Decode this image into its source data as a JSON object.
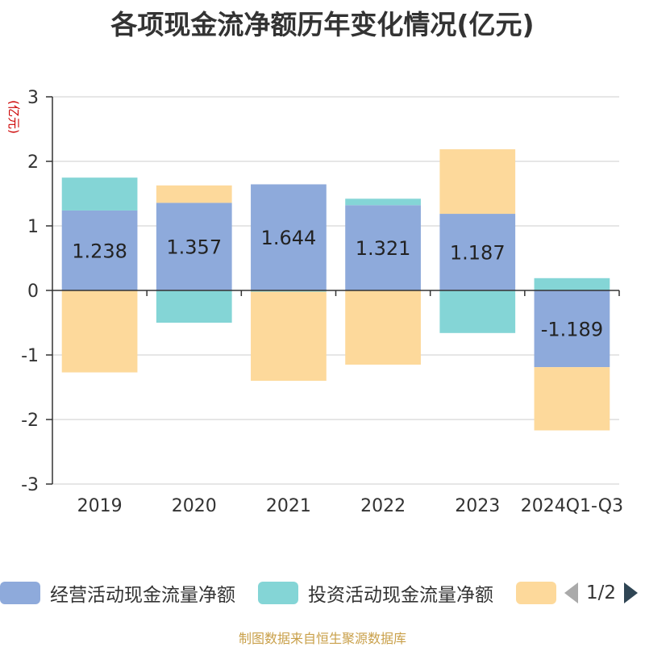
{
  "chart_data": {
    "type": "bar",
    "stacked": true,
    "title": "各项现金流净额历年变化情况(亿元)",
    "ylabel": "(亿元)",
    "categories": [
      "2019",
      "2020",
      "2021",
      "2022",
      "2023",
      "2024Q1-Q3"
    ],
    "ylim": [
      -3,
      3
    ],
    "yticks": [
      3,
      2,
      1,
      0,
      -1,
      -2,
      -3
    ],
    "grid": true,
    "legend_position": "bottom",
    "series": [
      {
        "name": "经营活动现金流量净额",
        "color": "#8eaadb",
        "values": [
          1.238,
          1.357,
          1.644,
          1.321,
          1.187,
          -1.189
        ],
        "labels": [
          "1.238",
          "1.357",
          "1.644",
          "1.321",
          "1.187",
          "-1.189"
        ]
      },
      {
        "name": "投资活动现金流量净额",
        "color": "#84d5d6",
        "values": [
          0.51,
          -0.5,
          -0.02,
          0.1,
          -0.66,
          0.19
        ]
      },
      {
        "name": "",
        "color": "#fdd99b",
        "values": [
          -1.27,
          0.27,
          -1.38,
          -1.15,
          1.0,
          -0.98
        ]
      }
    ],
    "pager": "1/2",
    "source": "制图数据来自恒生聚源数据库"
  }
}
